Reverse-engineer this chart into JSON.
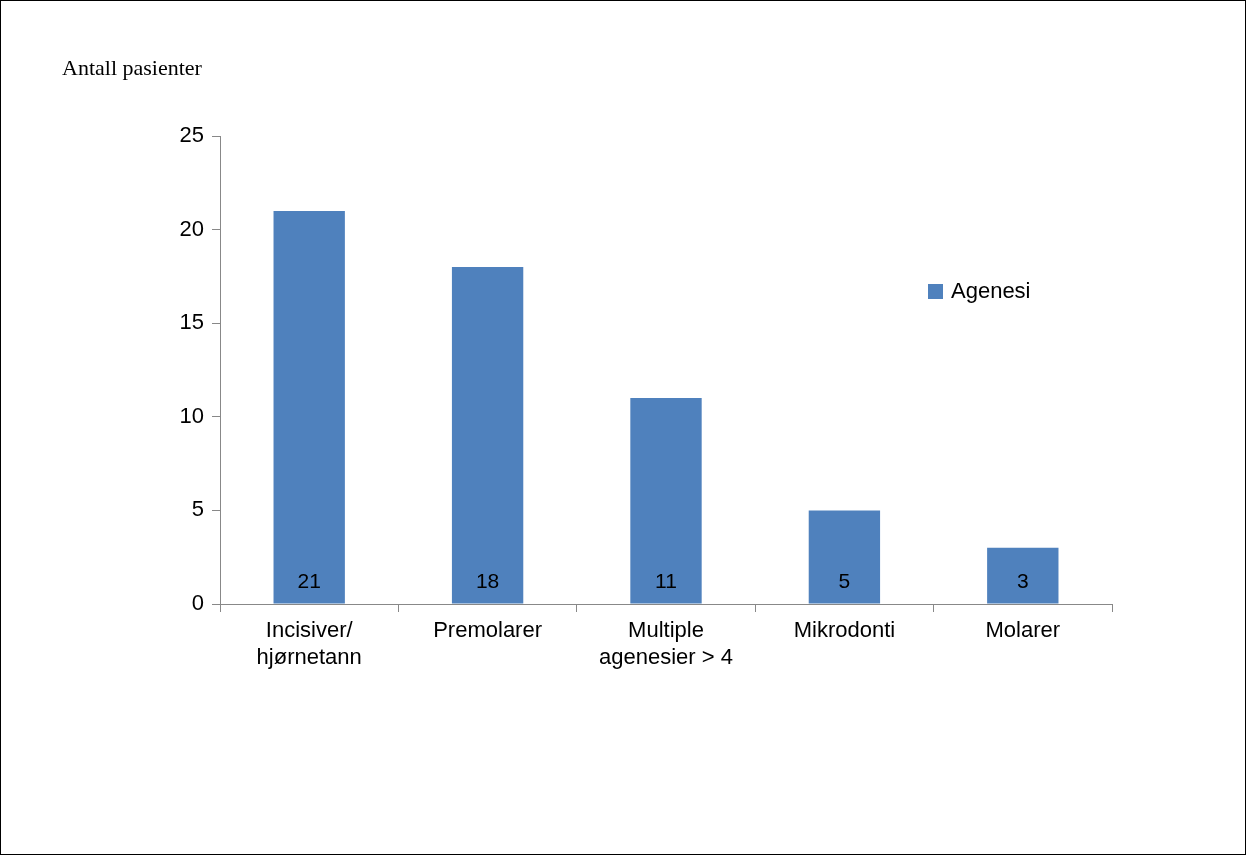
{
  "chart_data": {
    "type": "bar",
    "ylabel": "Antall pasienter",
    "categories": [
      "Incisiver/hjørnetann",
      "Premolarer",
      "Multiple agenesier > 4",
      "Mikrodonti",
      "Molarer"
    ],
    "series": [
      {
        "name": "Agenesi",
        "color": "#4f81bd",
        "values": [
          21,
          18,
          11,
          5,
          3
        ]
      }
    ],
    "ylim": [
      0,
      25
    ],
    "yticks": [
      0,
      5,
      10,
      15,
      20,
      25
    ],
    "grid": false,
    "legend": "right",
    "data_labels": true
  }
}
